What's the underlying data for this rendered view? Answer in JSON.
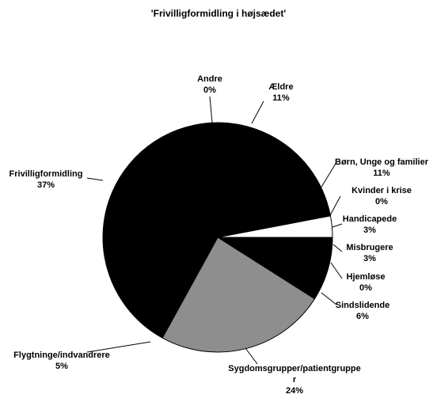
{
  "chart_data": {
    "type": "pie",
    "title": "'Frivilligformidling i højsædet'",
    "categories": [
      "Andre",
      "Ældre",
      "Børn, Unge og familier",
      "Kvinder i krise",
      "Handicapede",
      "Misbrugere",
      "Hjemløse",
      "Sindslidende",
      "Sygdomsgrupper/patientgruppe\nr",
      "Flygtninge/indvandrere",
      "Frivilligformidling"
    ],
    "values": [
      0,
      11,
      11,
      0,
      3,
      3,
      0,
      6,
      24,
      5,
      37
    ],
    "value_labels": [
      "0%",
      "11%",
      "11%",
      "0%",
      "3%",
      "3%",
      "0%",
      "6%",
      "24%",
      "5%",
      "37%"
    ],
    "colors": [
      "#000000",
      "#000000",
      "#000000",
      "#000000",
      "#ffffff",
      "#000000",
      "#000000",
      "#000000",
      "#8e8e8e",
      "#000000",
      "#000000"
    ]
  }
}
